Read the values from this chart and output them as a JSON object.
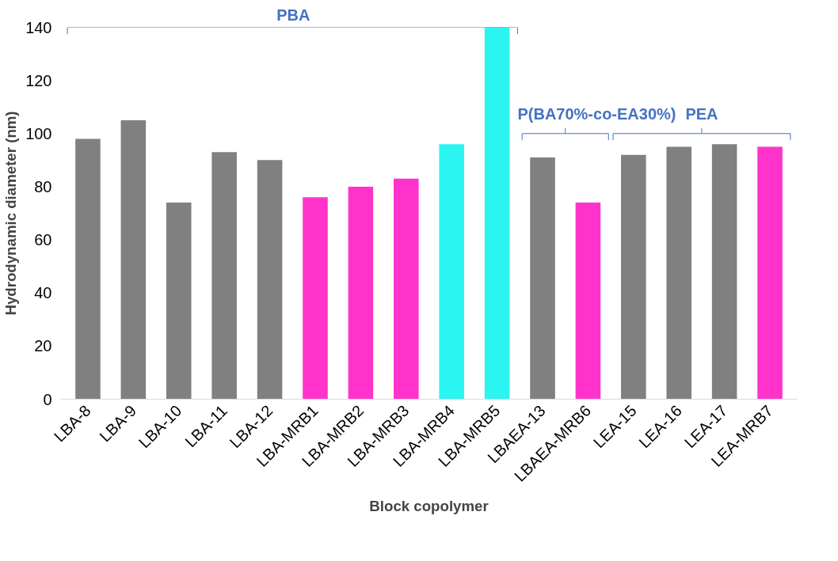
{
  "chart_data": {
    "type": "bar",
    "xlabel": "Block copolymer",
    "ylabel": "Hydrodynamic diameter (nm)",
    "categories": [
      "LBA-8",
      "LBA-9",
      "LBA-10",
      "LBA-11",
      "LBA-12",
      "LBA-MRB1",
      "LBA-MRB2",
      "LBA-MRB3",
      "LBA-MRB4",
      "LBA-MRB5",
      "LBAEA-13",
      "LBAEA-MRB6",
      "LEA-15",
      "LEA-16",
      "LEA-17",
      "LEA-MRB7"
    ],
    "values": [
      98,
      105,
      74,
      93,
      90,
      76,
      80,
      83,
      96,
      140,
      91,
      74,
      92,
      95,
      96,
      95
    ],
    "colors": [
      "#808080",
      "#808080",
      "#808080",
      "#808080",
      "#808080",
      "#ff33cc",
      "#ff33cc",
      "#ff33cc",
      "#2af5f0",
      "#2af5f0",
      "#808080",
      "#ff33cc",
      "#808080",
      "#808080",
      "#808080",
      "#ff33cc"
    ],
    "ylim": [
      0,
      140
    ],
    "yticks": [
      0,
      20,
      40,
      60,
      80,
      100,
      120,
      140
    ],
    "grid": false,
    "annotations": [
      "PBA",
      "P(BA70%-co-EA30%)",
      "PEA"
    ]
  }
}
